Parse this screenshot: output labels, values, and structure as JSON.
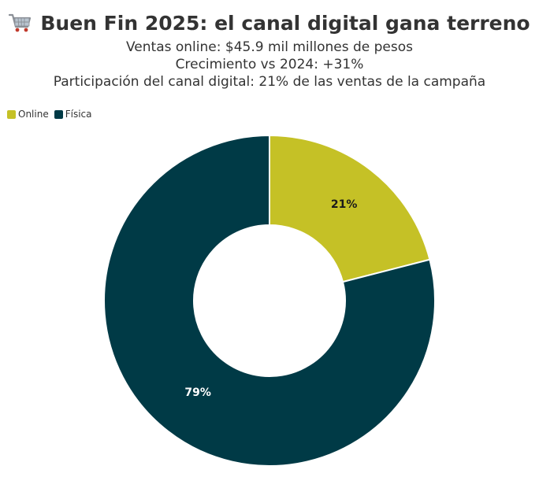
{
  "icon": "shopping-cart-icon",
  "title": "Buen Fin 2025: el canal digital gana terreno",
  "subtitles": [
    "Ventas online: $45.9 mil millones de pesos",
    "Crecimiento vs 2024: +31%",
    "Participación del canal digital: 21% de las ventas de la campaña"
  ],
  "colors": {
    "online": "#c5c126",
    "fisica": "#003a46",
    "label_on_online": "#1a1a1a",
    "label_on_fisica": "#ffffff"
  },
  "chart_data": {
    "type": "pie",
    "variant": "donut",
    "title": "Buen Fin 2025: el canal digital gana terreno",
    "legend_position": "top-left",
    "categories": [
      "Online",
      "Física"
    ],
    "values": [
      21,
      79
    ],
    "labels": [
      "21%",
      "79%"
    ]
  }
}
